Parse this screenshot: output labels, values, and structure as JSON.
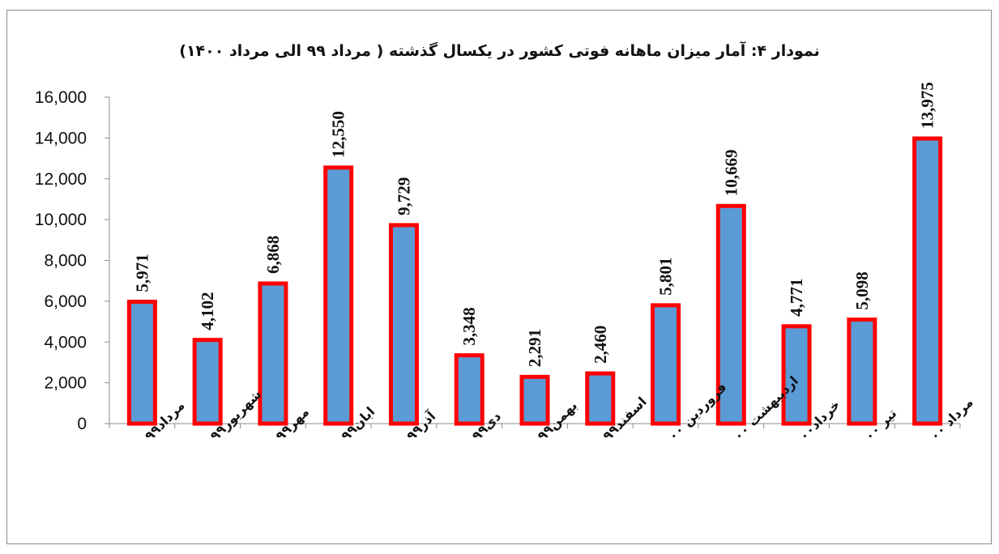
{
  "chart_data": {
    "type": "bar",
    "title": "نمودار ۴: آمار میزان ماهانه فوتی کشور در یکسال گذشته ( مرداد ۹۹ الی مرداد ۱۴۰۰)",
    "categories": [
      "مرداد۹۹",
      "شهریور۹۹",
      "مهر۹۹",
      "ابان۹۹",
      "آذر۹۹",
      "دی۹۹",
      "بهمن۹۹",
      "اسفند۹۹",
      "فروردین ۰۰",
      "اردیبهشت ۰۰",
      "خرداد۰۰",
      "تیر ۰۰",
      "مرداد ۰۰"
    ],
    "values": [
      5971,
      4102,
      6868,
      12550,
      9729,
      3348,
      2291,
      2460,
      5801,
      10669,
      4771,
      5098,
      13975
    ],
    "value_labels": [
      "5,971",
      "4,102",
      "6,868",
      "12,550",
      "9,729",
      "3,348",
      "2,291",
      "2,460",
      "5,801",
      "10,669",
      "4,771",
      "5,098",
      "13,975"
    ],
    "y_ticks": [
      0,
      2000,
      4000,
      6000,
      8000,
      10000,
      12000,
      14000,
      16000
    ],
    "y_tick_labels": [
      "0",
      "2,000",
      "4,000",
      "6,000",
      "8,000",
      "10,000",
      "12,000",
      "14,000",
      "16,000"
    ],
    "ylim": [
      0,
      16000
    ],
    "grid": false,
    "legend": "none",
    "colors": {
      "bar_fill": "#5b9bd5",
      "bar_border": "#ff0000",
      "axis": "#8c8c8c"
    }
  }
}
